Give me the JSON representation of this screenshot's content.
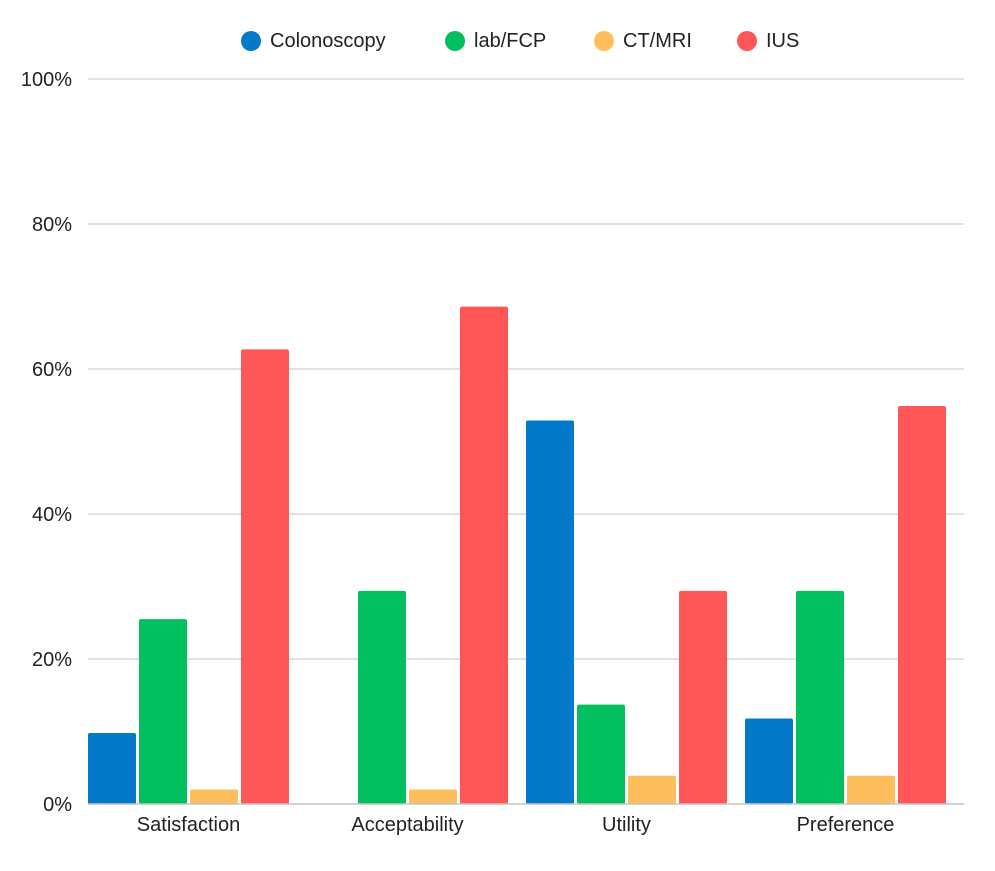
{
  "chart_data": {
    "type": "bar",
    "categories": [
      "Satisfaction",
      "Acceptability",
      "Utility",
      "Preference"
    ],
    "series": [
      {
        "name": "Colonoscopy",
        "color": "#0279c9",
        "values": [
          9.8,
          0,
          52.9,
          11.8
        ]
      },
      {
        "name": "lab/FCP",
        "color": "#02bf60",
        "values": [
          25.5,
          29.4,
          13.7,
          29.4
        ]
      },
      {
        "name": "CT/MRI",
        "color": "#ffbe5c",
        "values": [
          2,
          2,
          3.9,
          3.9
        ]
      },
      {
        "name": "IUS",
        "color": "#ff5757",
        "values": [
          62.7,
          68.6,
          29.4,
          54.9
        ]
      }
    ],
    "yticks": [
      "0%",
      "20%",
      "40%",
      "60%",
      "80%",
      "100%"
    ],
    "ylim": [
      0,
      100
    ],
    "grid": true,
    "legend_position": "top-center"
  }
}
